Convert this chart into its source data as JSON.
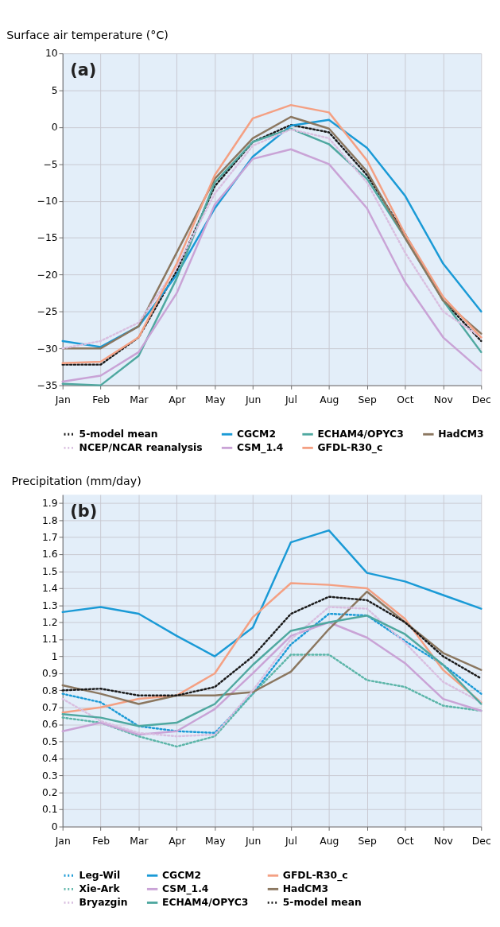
{
  "chart_data": [
    {
      "type": "line",
      "title": "Surface air temperature (°C)",
      "annotations": [
        "(a)"
      ],
      "categories": [
        "Jan",
        "Feb",
        "Mar",
        "Apr",
        "May",
        "Jun",
        "Jul",
        "Aug",
        "Sep",
        "Oct",
        "Nov",
        "Dec"
      ],
      "ylim": [
        -35,
        10
      ],
      "yticks": [
        -35,
        -30,
        -25,
        -20,
        -15,
        -10,
        -5,
        0,
        5,
        10
      ],
      "grid": true,
      "legend": "bottom",
      "marker": "none",
      "series": [
        {
          "name": "5-model mean",
          "color": "#1a1a1a",
          "line_style": "dotted",
          "values": [
            -32.2,
            -32.2,
            -28.5,
            -19.5,
            -8,
            -2,
            0.3,
            -0.7,
            -6.5,
            -14.5,
            -23.5,
            -29
          ]
        },
        {
          "name": "CGCM2",
          "color": "#1a9ad6",
          "line_style": "solid",
          "values": [
            -29,
            -29.8,
            -27,
            -20,
            -11,
            -4,
            0.2,
            1,
            -2.8,
            -9.3,
            -18.5,
            -25
          ]
        },
        {
          "name": "ECHAM4/OPYC3",
          "color": "#4fa8a0",
          "line_style": "solid",
          "values": [
            -34.8,
            -35,
            -31,
            -20.5,
            -7.5,
            -2,
            -0.2,
            -2.3,
            -7,
            -15,
            -23.5,
            -30.5
          ]
        },
        {
          "name": "HadCM3",
          "color": "#8b7760",
          "line_style": "solid",
          "values": [
            -30,
            -30,
            -27,
            -17,
            -7,
            -1.5,
            1.4,
            -0.2,
            -6,
            -15,
            -23.5,
            -28
          ]
        },
        {
          "name": "NCEP/NCAR reanalysis",
          "color": "#d9bfe0",
          "line_style": "dotted",
          "values": [
            -30,
            -29,
            -26.5,
            -19,
            -9,
            -2.5,
            -0.3,
            -1.5,
            -7.5,
            -17,
            -25,
            -28.5
          ]
        },
        {
          "name": "CSM_1.4",
          "color": "#c9a3d6",
          "line_style": "solid",
          "values": [
            -34.5,
            -33.7,
            -30.5,
            -22.5,
            -10.5,
            -4.3,
            -3,
            -5,
            -11,
            -21,
            -28.5,
            -33
          ]
        },
        {
          "name": "GFDL-R30_c",
          "color": "#f4a083",
          "line_style": "solid",
          "values": [
            -32,
            -31.8,
            -28.5,
            -18.5,
            -6.5,
            1.2,
            3,
            2,
            -4.5,
            -14.5,
            -23,
            -28.5
          ]
        }
      ]
    },
    {
      "type": "line",
      "title": "Precipitation (mm/day)",
      "annotations": [
        "(b)"
      ],
      "categories": [
        "Jan",
        "Feb",
        "Mar",
        "Apr",
        "May",
        "Jun",
        "Jul",
        "Aug",
        "Sep",
        "Oct",
        "Nov",
        "Dec"
      ],
      "ylim": [
        0,
        1.95
      ],
      "yticks": [
        0,
        0.1,
        0.2,
        0.3,
        0.4,
        0.5,
        0.6,
        0.7,
        0.8,
        0.9,
        1,
        1.1,
        1.2,
        1.3,
        1.4,
        1.5,
        1.6,
        1.7,
        1.8,
        1.9
      ],
      "grid": true,
      "legend": "bottom",
      "marker": "none",
      "series": [
        {
          "name": "Leg-Wil",
          "color": "#1a9ad6",
          "line_style": "dotted",
          "values": [
            0.78,
            0.73,
            0.59,
            0.56,
            0.55,
            0.78,
            1.07,
            1.25,
            1.24,
            1.09,
            0.95,
            0.78
          ]
        },
        {
          "name": "CGCM2",
          "color": "#1a9ad6",
          "line_style": "solid",
          "values": [
            1.26,
            1.29,
            1.25,
            1.12,
            1.0,
            1.17,
            1.67,
            1.74,
            1.49,
            1.44,
            1.36,
            1.28
          ]
        },
        {
          "name": "GFDL-R30_c",
          "color": "#f4a083",
          "line_style": "solid",
          "values": [
            0.67,
            0.7,
            0.75,
            0.77,
            0.9,
            1.23,
            1.43,
            1.42,
            1.4,
            1.22,
            0.92,
            0.73
          ]
        },
        {
          "name": "Xie-Ark",
          "color": "#5bb5a8",
          "line_style": "dotted",
          "values": [
            0.64,
            0.61,
            0.53,
            0.47,
            0.53,
            0.78,
            1.01,
            1.01,
            0.86,
            0.82,
            0.71,
            0.68
          ]
        },
        {
          "name": "CSM_1.4",
          "color": "#c9a3d6",
          "line_style": "solid",
          "values": [
            0.56,
            0.61,
            0.54,
            0.56,
            0.69,
            0.9,
            1.12,
            1.2,
            1.11,
            0.96,
            0.75,
            0.68
          ]
        },
        {
          "name": "HadCM3",
          "color": "#8b7760",
          "line_style": "solid",
          "values": [
            0.83,
            0.78,
            0.72,
            0.77,
            0.77,
            0.79,
            0.91,
            1.16,
            1.38,
            1.2,
            1.02,
            0.92
          ]
        },
        {
          "name": "Bryazgin",
          "color": "#d9bfe0",
          "line_style": "dotted",
          "values": [
            0.75,
            0.62,
            0.55,
            0.53,
            0.54,
            0.8,
            1.1,
            1.29,
            1.28,
            1.08,
            0.85,
            0.73
          ]
        },
        {
          "name": "ECHAM4/OPYC3",
          "color": "#4fa8a0",
          "line_style": "solid",
          "values": [
            0.66,
            0.64,
            0.59,
            0.61,
            0.72,
            0.95,
            1.15,
            1.2,
            1.24,
            1.13,
            0.95,
            0.72
          ]
        },
        {
          "name": "5-model mean",
          "color": "#1a1a1a",
          "line_style": "dotted",
          "values": [
            0.8,
            0.81,
            0.77,
            0.77,
            0.82,
            1.0,
            1.25,
            1.35,
            1.33,
            1.2,
            1.0,
            0.87
          ]
        }
      ]
    }
  ]
}
